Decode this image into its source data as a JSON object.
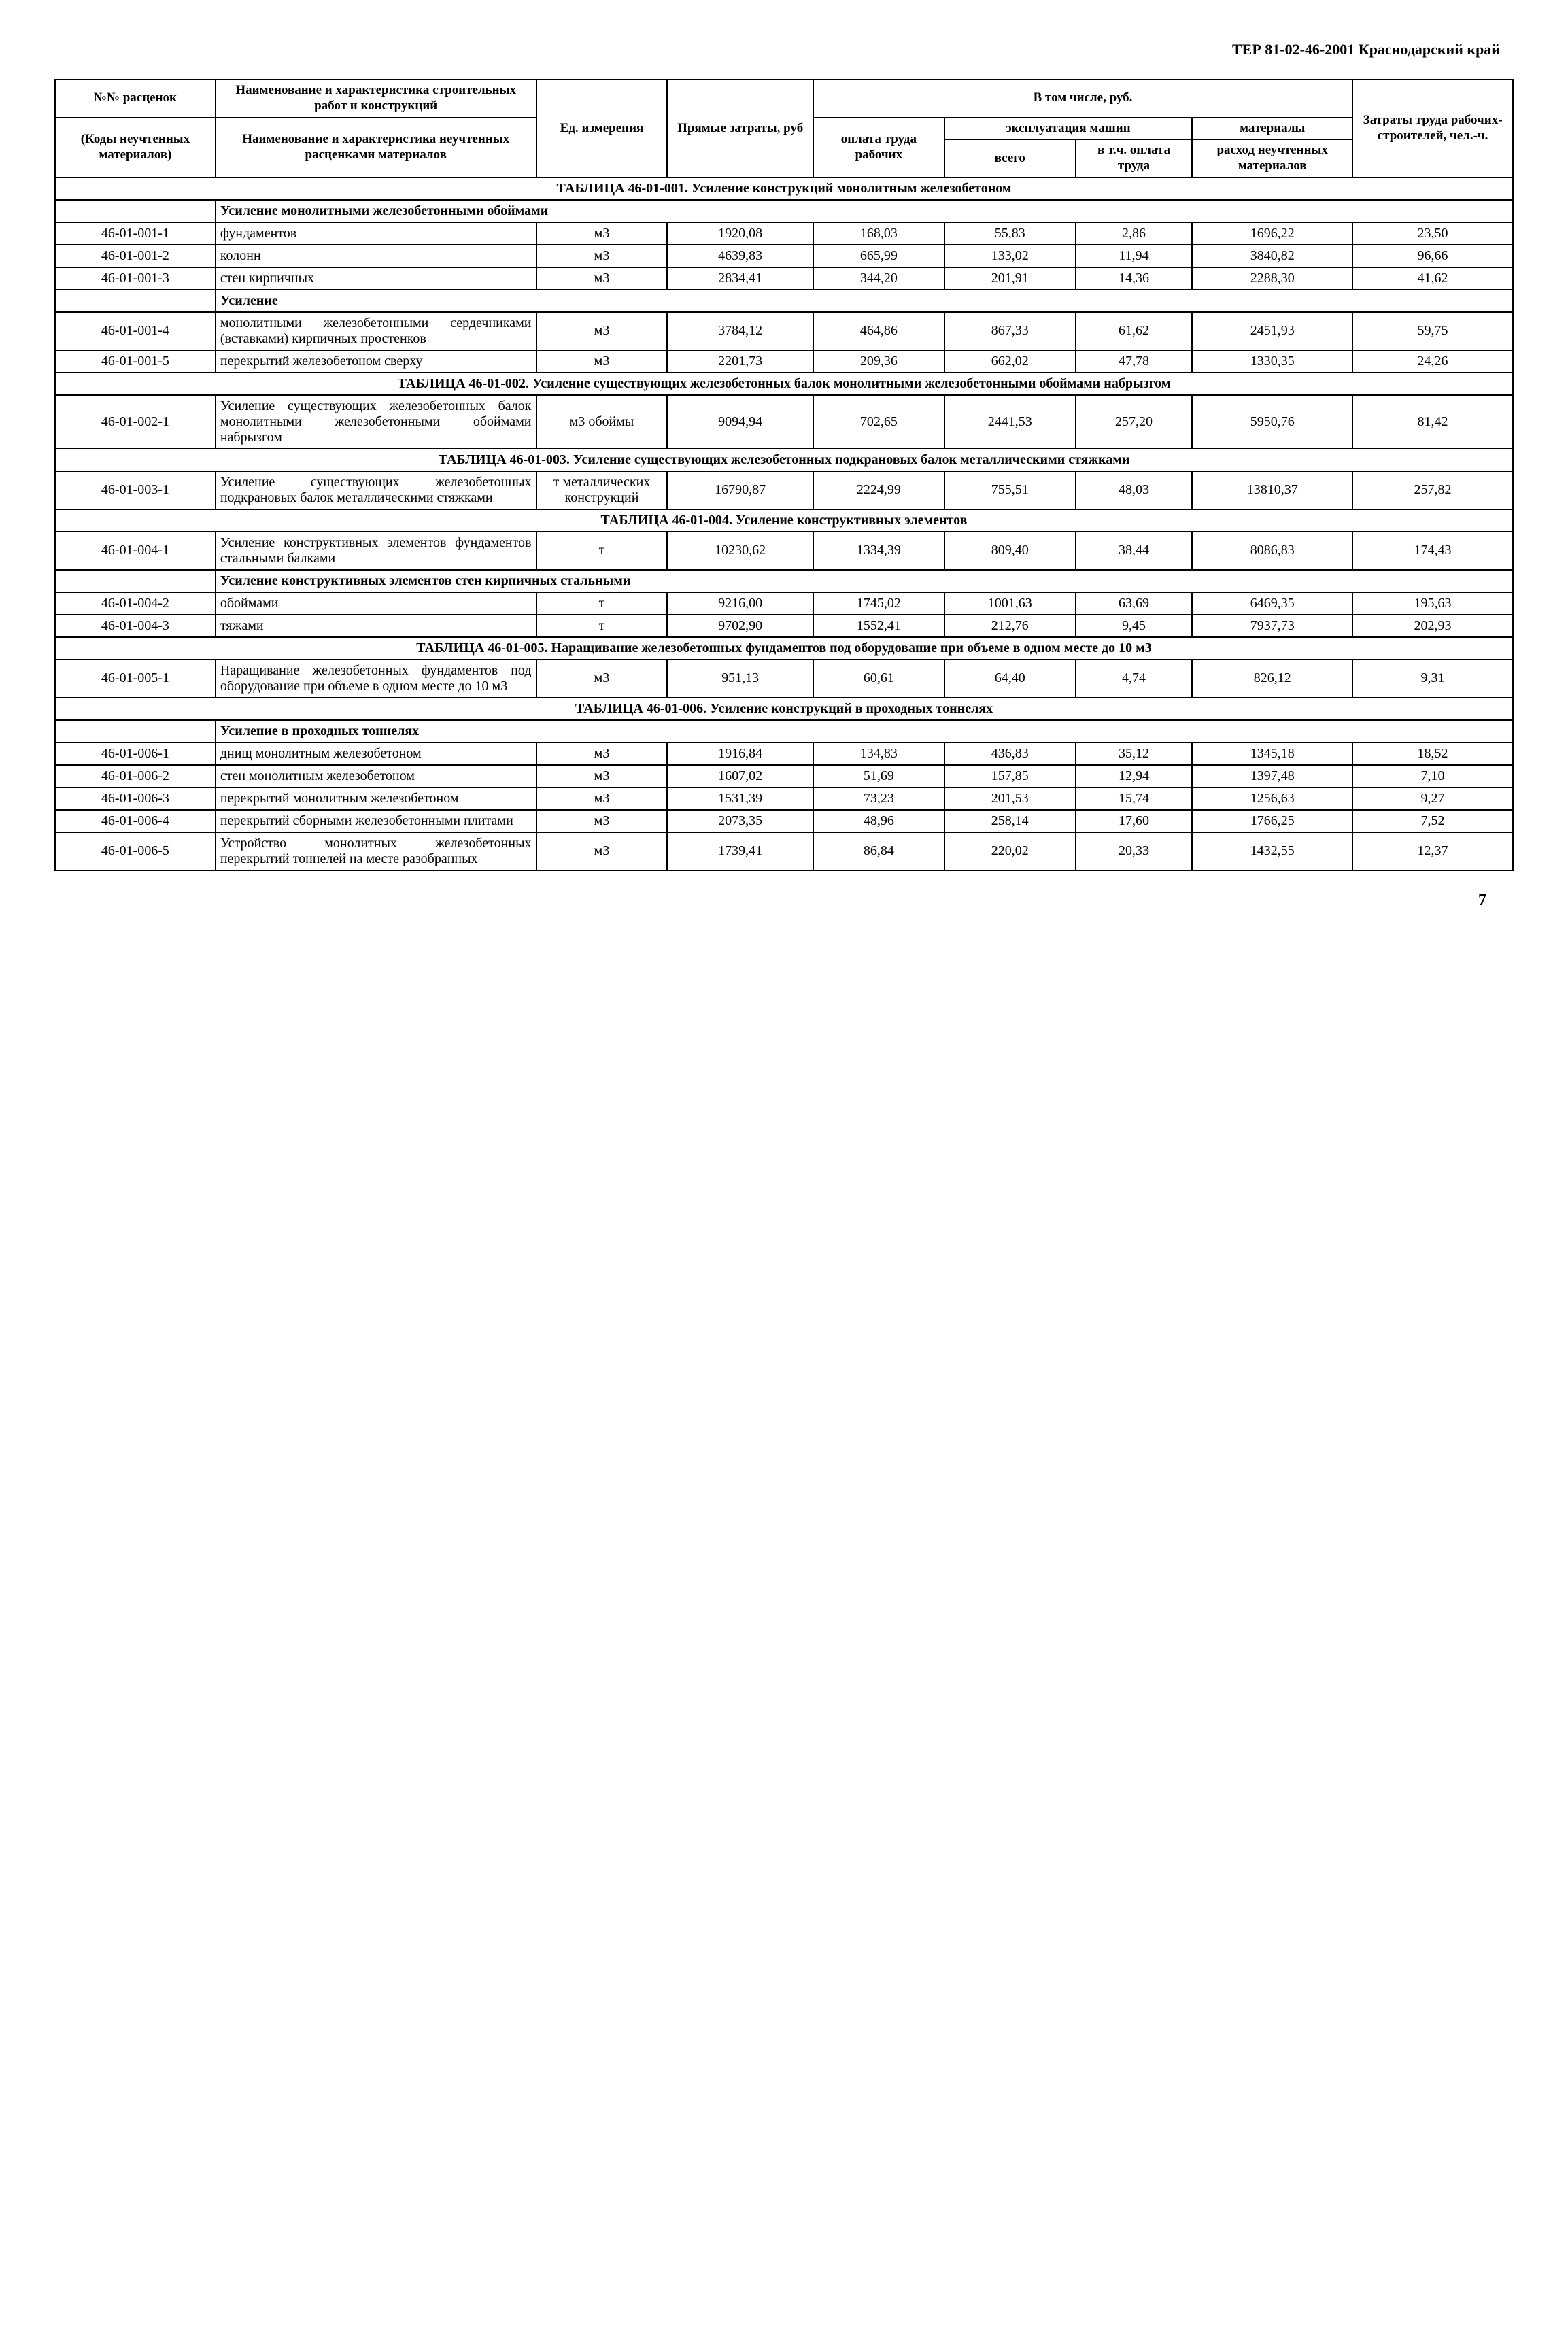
{
  "header": "ТЕР 81-02-46-2001  Краснодарский край",
  "page_number": "7",
  "table_headers": {
    "col1_top": "№№ расценок",
    "col1_bot": "(Коды неучтенных материалов)",
    "col2_top": "Наименование и харак­теристика строительных работ и конструкций",
    "col2_bot": "Наименование и харак­теристика неучтенных расценками материалов",
    "col3": "Ед. измере­ния",
    "col4": "Прямые затраты, руб",
    "group5": "В том числе, руб.",
    "col5": "оплата труда рабочих",
    "group6": "эксплуатация машин",
    "col6": "всего",
    "col7": "в т.ч. оплата труда",
    "col8_top": "материа­лы",
    "col8_bot": "расход неучтен­ных материа­лов",
    "col9": "Затраты труда рабочих-строите­лей, чел.-ч."
  },
  "sections": [
    {
      "title": "ТАБЛИЦА  46-01-001.  Усиление конструкций монолитным железобетоном"
    },
    {
      "sub": "Усиление монолитными железобетонными обоймами"
    }
  ],
  "rows1": [
    {
      "code": "46-01-001-1",
      "desc": "фундаментов",
      "unit": "м3",
      "c1": "1920,08",
      "c2": "168,03",
      "c3": "55,83",
      "c4": "2,86",
      "c5": "1696,22",
      "c6": "23,50"
    },
    {
      "code": "46-01-001-2",
      "desc": "колонн",
      "unit": "м3",
      "c1": "4639,83",
      "c2": "665,99",
      "c3": "133,02",
      "c4": "11,94",
      "c5": "3840,82",
      "c6": "96,66"
    },
    {
      "code": "46-01-001-3",
      "desc": "стен кирпичных",
      "unit": "м3",
      "c1": "2834,41",
      "c2": "344,20",
      "c3": "201,91",
      "c4": "14,36",
      "c5": "2288,30",
      "c6": "41,62"
    }
  ],
  "sub2": "Усиление",
  "rows2": [
    {
      "code": "46-01-001-4",
      "desc": "монолитными железо­бетонными сердечни­ками (вставками) кирпичных простенков",
      "unit": "м3",
      "c1": "3784,12",
      "c2": "464,86",
      "c3": "867,33",
      "c4": "61,62",
      "c5": "2451,93",
      "c6": "59,75"
    },
    {
      "code": "46-01-001-5",
      "desc": "перекрытий железобе­тоном сверху",
      "unit": "м3",
      "c1": "2201,73",
      "c2": "209,36",
      "c3": "662,02",
      "c4": "47,78",
      "c5": "1330,35",
      "c6": "24,26"
    }
  ],
  "sec002": "ТАБЛИЦА  46-01-002.  Усиление существующих железобетонных балок монолитными железобетонными обоймами набрызгом",
  "rows3": [
    {
      "code": "46-01-002-1",
      "desc": "Усиление существую­щих железобетонных балок монолитными железобетонными обоймами набрызгом",
      "unit": "м3 обоймы",
      "c1": "9094,94",
      "c2": "702,65",
      "c3": "2441,53",
      "c4": "257,20",
      "c5": "5950,76",
      "c6": "81,42"
    }
  ],
  "sec003": "ТАБЛИЦА  46-01-003.  Усиление существующих железобетонных подкрановых балок металлическими стяж­ками",
  "rows4": [
    {
      "code": "46-01-003-1",
      "desc": "Усиление существую­щих железобетонных подкрановых балок металлическими стяжками",
      "unit": "т металличе­ских конст­рукций",
      "c1": "16790,87",
      "c2": "2224,99",
      "c3": "755,51",
      "c4": "48,03",
      "c5": "13810,37",
      "c6": "257,82"
    }
  ],
  "sec004": "ТАБЛИЦА  46-01-004.  Усиление конструктивных элементов",
  "rows5": [
    {
      "code": "46-01-004-1",
      "desc": "Усиление конструк­тивных элементов фундаментов стальны­ми балками",
      "unit": "т",
      "c1": "10230,62",
      "c2": "1334,39",
      "c3": "809,40",
      "c4": "38,44",
      "c5": "8086,83",
      "c6": "174,43"
    }
  ],
  "sub5": "Усиление конструктивных элементов стен кирпичных стальными",
  "rows6": [
    {
      "code": "46-01-004-2",
      "desc": "обоймами",
      "unit": "т",
      "c1": "9216,00",
      "c2": "1745,02",
      "c3": "1001,63",
      "c4": "63,69",
      "c5": "6469,35",
      "c6": "195,63"
    },
    {
      "code": "46-01-004-3",
      "desc": "тяжами",
      "unit": "т",
      "c1": "9702,90",
      "c2": "1552,41",
      "c3": "212,76",
      "c4": "9,45",
      "c5": "7937,73",
      "c6": "202,93"
    }
  ],
  "sec005": "ТАБЛИЦА  46-01-005.  Наращивание железобетонных фундаментов под оборудование при объеме в одном месте до 10 м3",
  "rows7": [
    {
      "code": "46-01-005-1",
      "desc": "Наращивание железо­бетонных фундаментов под оборудование при объеме в одном месте до 10 м3",
      "unit": "м3",
      "c1": "951,13",
      "c2": "60,61",
      "c3": "64,40",
      "c4": "4,74",
      "c5": "826,12",
      "c6": "9,31"
    }
  ],
  "sec006": "ТАБЛИЦА  46-01-006.  Усиление конструкций в проходных тоннелях",
  "sub6": "Усиление в проходных тоннелях",
  "rows8": [
    {
      "code": "46-01-006-1",
      "desc": "днищ монолитным железобетоном",
      "unit": "м3",
      "c1": "1916,84",
      "c2": "134,83",
      "c3": "436,83",
      "c4": "35,12",
      "c5": "1345,18",
      "c6": "18,52"
    },
    {
      "code": "46-01-006-2",
      "desc": "стен монолитным железобетоном",
      "unit": "м3",
      "c1": "1607,02",
      "c2": "51,69",
      "c3": "157,85",
      "c4": "12,94",
      "c5": "1397,48",
      "c6": "7,10"
    },
    {
      "code": "46-01-006-3",
      "desc": "перекрытий монолит­ным железобетоном",
      "unit": "м3",
      "c1": "1531,39",
      "c2": "73,23",
      "c3": "201,53",
      "c4": "15,74",
      "c5": "1256,63",
      "c6": "9,27"
    },
    {
      "code": "46-01-006-4",
      "desc": "перекрытий сборными железобетонными плитами",
      "unit": "м3",
      "c1": "2073,35",
      "c2": "48,96",
      "c3": "258,14",
      "c4": "17,60",
      "c5": "1766,25",
      "c6": "7,52"
    },
    {
      "code": "46-01-006-5",
      "desc": "Устройство монолит­ных железобетонных перекрытий тоннелей на месте разобранных",
      "unit": "м3",
      "c1": "1739,41",
      "c2": "86,84",
      "c3": "220,02",
      "c4": "20,33",
      "c5": "1432,55",
      "c6": "12,37"
    }
  ],
  "colwidths": [
    "11%",
    "22%",
    "9%",
    "10%",
    "9%",
    "9%",
    "8%",
    "11%",
    "11%"
  ]
}
